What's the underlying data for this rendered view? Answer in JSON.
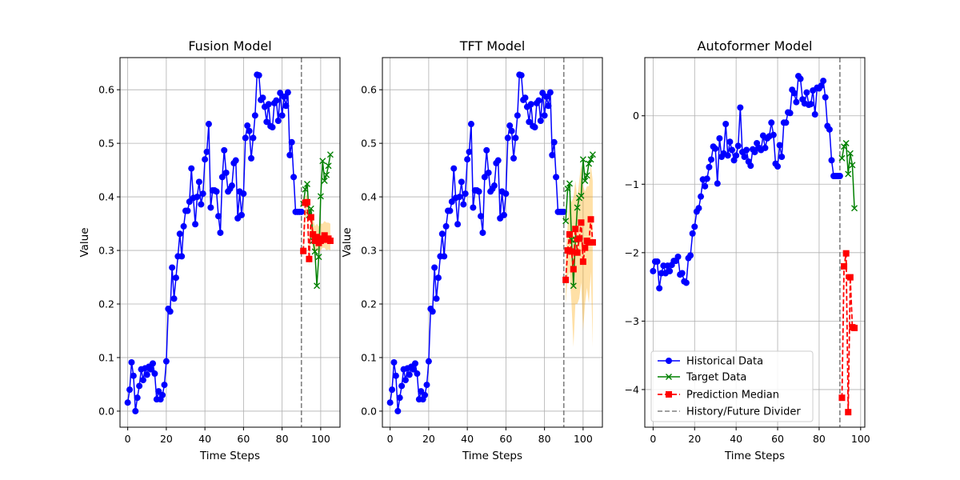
{
  "chart_data": [
    {
      "type": "line",
      "title": "Fusion Model",
      "xlabel": "Time Steps",
      "ylabel": "Value",
      "xlim": [
        -4,
        110
      ],
      "ylim": [
        -0.03,
        0.66
      ],
      "xticks": [
        0,
        20,
        40,
        60,
        80,
        100
      ],
      "yticks": [
        0.0,
        0.1,
        0.2,
        0.3,
        0.4,
        0.5,
        0.6
      ],
      "tick_decimals": 1,
      "grid": true,
      "divider_x": 90,
      "historical": {
        "x": [
          0,
          1,
          2,
          3,
          4,
          5,
          6,
          7,
          8,
          9,
          10,
          11,
          12,
          13,
          14,
          15,
          16,
          17,
          18,
          19,
          20,
          21,
          22,
          23,
          24,
          25,
          26,
          27,
          28,
          29,
          30,
          31,
          32,
          33,
          34,
          35,
          36,
          37,
          38,
          39,
          40,
          41,
          42,
          43,
          44,
          45,
          46,
          47,
          48,
          49,
          50,
          51,
          52,
          53,
          54,
          55,
          56,
          57,
          58,
          59,
          60,
          61,
          62,
          63,
          64,
          65,
          66,
          67,
          68,
          69,
          70,
          71,
          72,
          73,
          74,
          75,
          76,
          77,
          78,
          79,
          80,
          81,
          82,
          83,
          84,
          85,
          86,
          87,
          88,
          89,
          90
        ],
        "y": [
          0.016,
          0.04,
          0.091,
          0.066,
          0.0,
          0.025,
          0.047,
          0.078,
          0.058,
          0.08,
          0.068,
          0.083,
          0.078,
          0.089,
          0.07,
          0.022,
          0.037,
          0.022,
          0.03,
          0.049,
          0.093,
          0.191,
          0.186,
          0.268,
          0.21,
          0.249,
          0.289,
          0.331,
          0.289,
          0.345,
          0.374,
          0.374,
          0.391,
          0.453,
          0.398,
          0.349,
          0.4,
          0.428,
          0.386,
          0.406,
          0.47,
          0.484,
          0.536,
          0.38,
          0.412,
          0.412,
          0.41,
          0.364,
          0.333,
          0.437,
          0.487,
          0.445,
          0.41,
          0.415,
          0.421,
          0.463,
          0.468,
          0.36,
          0.41,
          0.366,
          0.406,
          0.51,
          0.533,
          0.523,
          0.472,
          0.51,
          0.552,
          0.628,
          0.627,
          0.581,
          0.585,
          0.568,
          0.54,
          0.573,
          0.532,
          0.53,
          0.575,
          0.58,
          0.542,
          0.594,
          0.552,
          0.587,
          0.57,
          0.595,
          0.478,
          0.502,
          0.437,
          0.372,
          0.372,
          0.372,
          0.372
        ]
      },
      "target": {
        "x": [
          91,
          92,
          93,
          94,
          95,
          96,
          97,
          98,
          99,
          100,
          101,
          102,
          103,
          104,
          105
        ],
        "y": [
          0.387,
          0.414,
          0.424,
          0.366,
          0.378,
          0.318,
          0.298,
          0.234,
          0.288,
          0.401,
          0.467,
          0.43,
          0.441,
          0.458,
          0.479
        ]
      },
      "prediction": {
        "x": [
          91,
          92,
          93,
          94,
          95,
          96,
          97,
          98,
          99,
          100,
          101,
          102,
          103,
          104,
          105
        ],
        "y": [
          0.299,
          0.389,
          0.39,
          0.284,
          0.362,
          0.33,
          0.318,
          0.325,
          0.314,
          0.318,
          0.322,
          0.328,
          0.32,
          0.322,
          0.318
        ],
        "lower": [
          0.28,
          0.36,
          0.365,
          0.27,
          0.33,
          0.3,
          0.295,
          0.3,
          0.295,
          0.3,
          0.305,
          0.305,
          0.3,
          0.302,
          0.3
        ],
        "upper": [
          0.32,
          0.4,
          0.405,
          0.31,
          0.37,
          0.36,
          0.345,
          0.35,
          0.345,
          0.35,
          0.35,
          0.355,
          0.352,
          0.352,
          0.35
        ]
      }
    },
    {
      "type": "line",
      "title": "TFT Model",
      "xlabel": "Time Steps",
      "ylabel": "Value",
      "xlim": [
        -4,
        110
      ],
      "ylim": [
        -0.03,
        0.66
      ],
      "xticks": [
        0,
        20,
        40,
        60,
        80,
        100
      ],
      "yticks": [
        0.0,
        0.1,
        0.2,
        0.3,
        0.4,
        0.5,
        0.6
      ],
      "tick_decimals": 1,
      "grid": true,
      "divider_x": 90,
      "historical": {
        "x": [
          0,
          1,
          2,
          3,
          4,
          5,
          6,
          7,
          8,
          9,
          10,
          11,
          12,
          13,
          14,
          15,
          16,
          17,
          18,
          19,
          20,
          21,
          22,
          23,
          24,
          25,
          26,
          27,
          28,
          29,
          30,
          31,
          32,
          33,
          34,
          35,
          36,
          37,
          38,
          39,
          40,
          41,
          42,
          43,
          44,
          45,
          46,
          47,
          48,
          49,
          50,
          51,
          52,
          53,
          54,
          55,
          56,
          57,
          58,
          59,
          60,
          61,
          62,
          63,
          64,
          65,
          66,
          67,
          68,
          69,
          70,
          71,
          72,
          73,
          74,
          75,
          76,
          77,
          78,
          79,
          80,
          81,
          82,
          83,
          84,
          85,
          86,
          87,
          88,
          89,
          90
        ],
        "y": [
          0.016,
          0.04,
          0.091,
          0.066,
          0.0,
          0.025,
          0.047,
          0.078,
          0.058,
          0.08,
          0.068,
          0.083,
          0.078,
          0.089,
          0.07,
          0.022,
          0.037,
          0.022,
          0.03,
          0.049,
          0.093,
          0.191,
          0.186,
          0.268,
          0.21,
          0.249,
          0.289,
          0.331,
          0.289,
          0.345,
          0.374,
          0.374,
          0.391,
          0.453,
          0.398,
          0.349,
          0.4,
          0.428,
          0.386,
          0.406,
          0.47,
          0.484,
          0.536,
          0.38,
          0.412,
          0.412,
          0.41,
          0.364,
          0.333,
          0.437,
          0.487,
          0.445,
          0.41,
          0.415,
          0.421,
          0.463,
          0.468,
          0.36,
          0.41,
          0.366,
          0.406,
          0.51,
          0.533,
          0.523,
          0.472,
          0.51,
          0.552,
          0.628,
          0.627,
          0.581,
          0.585,
          0.568,
          0.54,
          0.573,
          0.532,
          0.53,
          0.575,
          0.58,
          0.542,
          0.594,
          0.552,
          0.587,
          0.57,
          0.595,
          0.478,
          0.502,
          0.437,
          0.372,
          0.372,
          0.372,
          0.372
        ]
      },
      "target": {
        "x": [
          91,
          92,
          93,
          94,
          95,
          96,
          97,
          98,
          99,
          100,
          101,
          102,
          103,
          104,
          105
        ],
        "y": [
          0.355,
          0.415,
          0.425,
          0.32,
          0.234,
          0.32,
          0.38,
          0.398,
          0.402,
          0.47,
          0.43,
          0.44,
          0.462,
          0.47,
          0.479
        ]
      },
      "prediction": {
        "x": [
          91,
          92,
          93,
          94,
          95,
          96,
          97,
          98,
          99,
          100,
          101,
          102,
          103,
          104,
          105
        ],
        "y": [
          0.245,
          0.3,
          0.33,
          0.298,
          0.265,
          0.34,
          0.296,
          0.322,
          0.352,
          0.279,
          0.305,
          0.318,
          0.315,
          0.358,
          0.315
        ],
        "lower": [
          0.2,
          0.25,
          0.26,
          0.2,
          0.12,
          0.2,
          0.2,
          0.21,
          0.24,
          0.15,
          0.2,
          0.23,
          0.2,
          0.26,
          0.12
        ],
        "upper": [
          0.29,
          0.35,
          0.4,
          0.39,
          0.4,
          0.43,
          0.4,
          0.43,
          0.46,
          0.42,
          0.41,
          0.42,
          0.42,
          0.46,
          0.43
        ]
      }
    },
    {
      "type": "line",
      "title": "Autoformer Model",
      "xlabel": "Time Steps",
      "ylabel": "",
      "xlim": [
        -4,
        102
      ],
      "ylim": [
        -4.55,
        0.85
      ],
      "xticks": [
        0,
        20,
        40,
        60,
        80,
        100
      ],
      "yticks": [
        -4,
        -3,
        -2,
        -1,
        0
      ],
      "tick_decimals": 0,
      "grid": true,
      "divider_x": 90,
      "historical": {
        "x": [
          0,
          1,
          2,
          3,
          4,
          5,
          6,
          7,
          8,
          9,
          10,
          11,
          12,
          13,
          14,
          15,
          16,
          17,
          18,
          19,
          20,
          21,
          22,
          23,
          24,
          25,
          26,
          27,
          28,
          29,
          30,
          31,
          32,
          33,
          34,
          35,
          36,
          37,
          38,
          39,
          40,
          41,
          42,
          43,
          44,
          45,
          46,
          47,
          48,
          49,
          50,
          51,
          52,
          53,
          54,
          55,
          56,
          57,
          58,
          59,
          60,
          61,
          62,
          63,
          64,
          65,
          66,
          67,
          68,
          69,
          70,
          71,
          72,
          73,
          74,
          75,
          76,
          77,
          78,
          79,
          80,
          81,
          82,
          83,
          84,
          85,
          86,
          87,
          88,
          89,
          90
        ],
        "y": [
          -2.27,
          -2.13,
          -2.13,
          -2.52,
          -2.3,
          -2.19,
          -2.3,
          -2.19,
          -2.27,
          -2.18,
          -2.12,
          -2.12,
          -2.06,
          -2.32,
          -2.3,
          -2.42,
          -2.44,
          -2.08,
          -2.04,
          -1.72,
          -1.62,
          -1.4,
          -1.35,
          -1.18,
          -0.93,
          -1.03,
          -0.92,
          -0.75,
          -0.64,
          -0.45,
          -0.48,
          -0.99,
          -0.33,
          -0.6,
          -0.55,
          -0.12,
          -0.58,
          -0.38,
          -0.5,
          -0.65,
          -0.58,
          -0.44,
          0.12,
          -0.53,
          -0.6,
          -0.5,
          -0.67,
          -0.73,
          -0.49,
          -0.53,
          -0.4,
          -0.47,
          -0.5,
          -0.29,
          -0.47,
          -0.33,
          -0.3,
          -0.1,
          -0.28,
          -0.7,
          -0.74,
          -0.43,
          -0.6,
          -0.1,
          -0.1,
          0.05,
          0.04,
          0.38,
          0.33,
          0.2,
          0.58,
          0.54,
          0.24,
          0.18,
          0.34,
          0.16,
          0.17,
          0.37,
          0.02,
          0.41,
          0.4,
          0.44,
          0.51,
          0.27,
          -0.15,
          -0.2,
          -0.65,
          -0.88,
          -0.88,
          -0.88,
          -0.88
        ]
      },
      "target": {
        "x": [
          91,
          92,
          93,
          94,
          95,
          96,
          97
        ],
        "y": [
          -0.62,
          -0.45,
          -0.4,
          -0.85,
          -0.55,
          -0.72,
          -1.35
        ]
      },
      "prediction": {
        "x": [
          91,
          92,
          93,
          94,
          95,
          96,
          97
        ],
        "y": [
          -4.12,
          -2.2,
          -2.01,
          -4.33,
          -2.36,
          -3.09,
          -3.1
        ],
        "lower": [
          -4.16,
          -2.26,
          -2.06,
          -4.38,
          -2.42,
          -3.14,
          -3.14
        ],
        "upper": [
          -4.08,
          -2.14,
          -1.96,
          -4.28,
          -2.3,
          -3.04,
          -3.06
        ]
      }
    }
  ],
  "legend": {
    "placement": "lower-left",
    "historical_label": "Historical Data",
    "target_label": "Target Data",
    "prediction_label": "Prediction Median",
    "divider_label": "History/Future Divider"
  },
  "colors": {
    "historical": "#0000ff",
    "target": "#008000",
    "prediction": "#ff0000",
    "band": "#ffa500",
    "divider": "#808080",
    "grid": "#b0b0b0"
  }
}
